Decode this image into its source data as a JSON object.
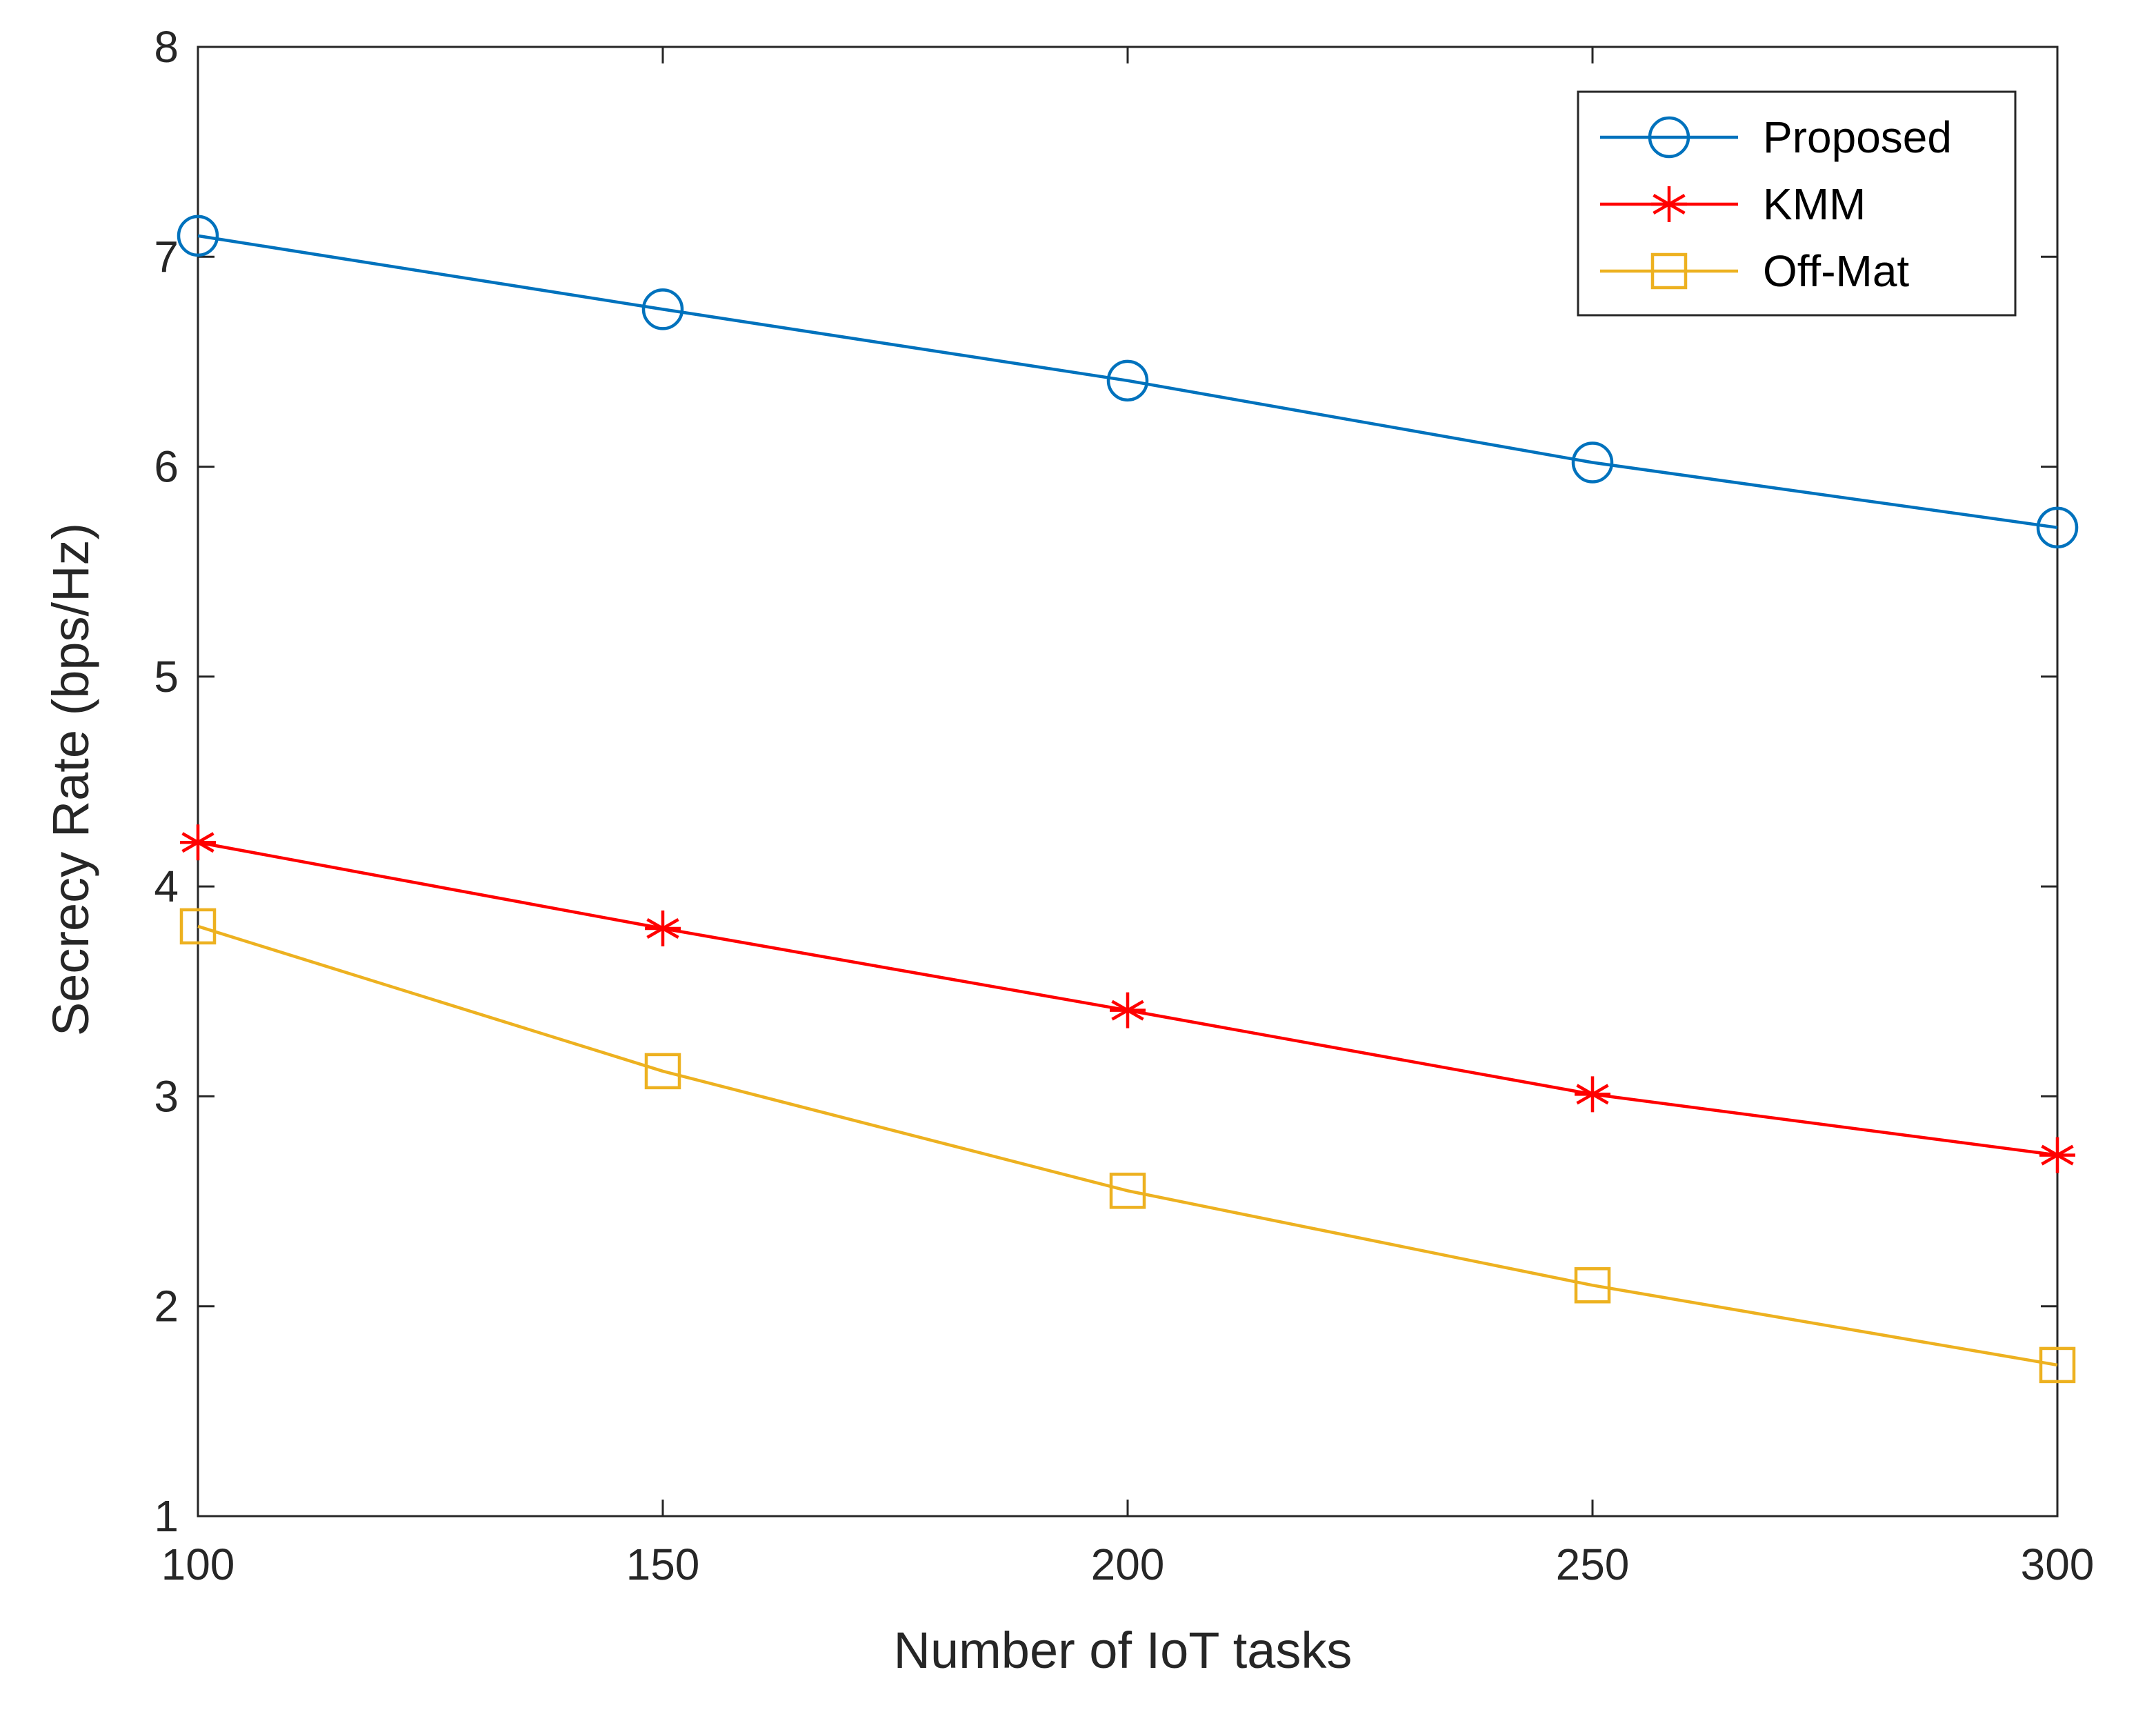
{
  "chart_data": {
    "type": "line",
    "title": "",
    "xlabel": "Number of IoT tasks",
    "ylabel": "Secrecy Rate (bps/Hz)",
    "xlim": [
      100,
      300
    ],
    "ylim": [
      1,
      8
    ],
    "xticks": [
      100,
      150,
      200,
      250,
      300
    ],
    "yticks": [
      1,
      2,
      3,
      4,
      5,
      6,
      7,
      8
    ],
    "grid": false,
    "legend_position": "top-right",
    "x": [
      100,
      150,
      200,
      250,
      300
    ],
    "series": [
      {
        "name": "Proposed",
        "marker": "circle",
        "color": "#0072BD",
        "values": [
          7.1,
          6.75,
          6.41,
          6.02,
          5.71
        ]
      },
      {
        "name": "KMM",
        "marker": "asterisk",
        "color": "#FF0000",
        "values": [
          4.21,
          3.8,
          3.41,
          3.01,
          2.72
        ]
      },
      {
        "name": "Off-Mat",
        "marker": "square",
        "color": "#EDB120",
        "values": [
          3.81,
          3.12,
          2.55,
          2.1,
          1.72
        ]
      }
    ]
  }
}
